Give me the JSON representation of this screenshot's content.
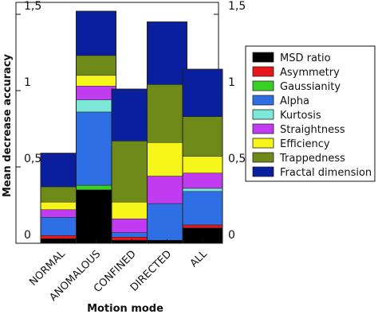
{
  "chart_data": {
    "type": "bar",
    "stacked": true,
    "title": "",
    "xlabel": "Motion mode",
    "ylabel": "Mean decrease accuracy",
    "ylim": [
      0,
      1.5
    ],
    "yticks": [
      0,
      0.5,
      1,
      1.5
    ],
    "ytick_labels": [
      "0",
      "0,5",
      "1",
      "1,5"
    ],
    "categories": [
      "NORMAL",
      "ANOMALOUS",
      "CONFINED",
      "DIRECTED",
      "ALL"
    ],
    "legend_position": "right",
    "grid": false,
    "series": [
      {
        "name": "MSD ratio",
        "color": "#000000",
        "values": [
          0.03,
          0.35,
          0.02,
          0.02,
          0.1
        ]
      },
      {
        "name": "Asymmetry",
        "color": "#e8161a",
        "values": [
          0.02,
          0.0,
          0.02,
          0.0,
          0.02
        ]
      },
      {
        "name": "Gaussianity",
        "color": "#3ad126",
        "values": [
          0.0,
          0.03,
          0.0,
          0.0,
          0.0
        ]
      },
      {
        "name": "Alpha",
        "color": "#2f6fe6",
        "values": [
          0.12,
          0.48,
          0.03,
          0.24,
          0.22
        ]
      },
      {
        "name": "Kurtosis",
        "color": "#7ee8d8",
        "values": [
          0.0,
          0.08,
          0.0,
          0.0,
          0.02
        ]
      },
      {
        "name": "Straightness",
        "color": "#c13cf0",
        "values": [
          0.05,
          0.09,
          0.09,
          0.18,
          0.1
        ]
      },
      {
        "name": "Efficiency",
        "color": "#f5f51a",
        "values": [
          0.05,
          0.07,
          0.11,
          0.22,
          0.11
        ]
      },
      {
        "name": "Trappedness",
        "color": "#6e8a18",
        "values": [
          0.1,
          0.13,
          0.4,
          0.38,
          0.26
        ]
      },
      {
        "name": "Fractal dimension",
        "color": "#0a1f9e",
        "values": [
          0.22,
          0.29,
          0.34,
          0.41,
          0.31
        ]
      }
    ]
  }
}
